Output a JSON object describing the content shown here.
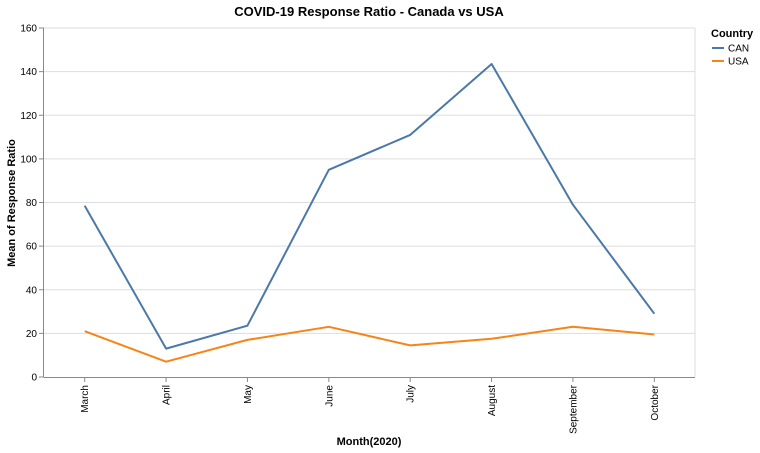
{
  "chart_data": {
    "type": "line",
    "title": "COVID-19 Response Ratio - Canada vs USA",
    "xlabel": "Month(2020)",
    "ylabel": "Mean of Response Ratio",
    "ylim": [
      0,
      160
    ],
    "yticks": [
      0,
      20,
      40,
      60,
      80,
      100,
      120,
      140,
      160
    ],
    "grid": true,
    "legend_title": "Country",
    "legend_position": "right",
    "categories": [
      "March",
      "April",
      "May",
      "June",
      "July",
      "August",
      "September",
      "October"
    ],
    "series": [
      {
        "name": "CAN",
        "color": "#4c78a8",
        "values": [
          78.5,
          13.0,
          23.5,
          95.0,
          111.0,
          143.5,
          79.0,
          29.0
        ]
      },
      {
        "name": "USA",
        "color": "#f58518",
        "values": [
          21.0,
          7.0,
          17.0,
          23.0,
          14.5,
          17.5,
          23.0,
          19.5
        ]
      }
    ]
  }
}
